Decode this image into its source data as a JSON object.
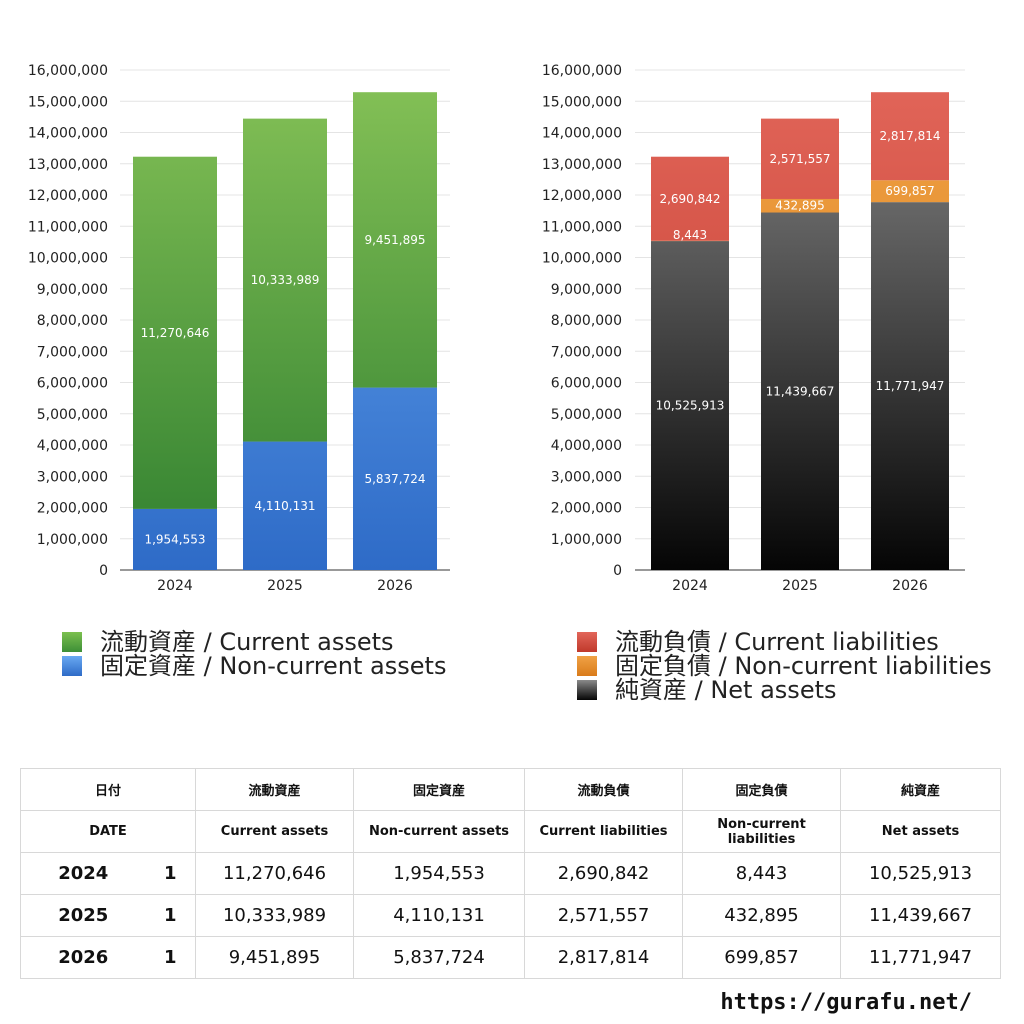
{
  "chart_data": [
    {
      "type": "bar",
      "stacked": true,
      "categories": [
        "2024",
        "2025",
        "2026"
      ],
      "ylim": [
        0,
        16000000
      ],
      "ytick_labels": [
        "0",
        "1,000,000",
        "2,000,000",
        "3,000,000",
        "4,000,000",
        "5,000,000",
        "6,000,000",
        "7,000,000",
        "8,000,000",
        "9,000,000",
        "10,000,000",
        "11,000,000",
        "12,000,000",
        "13,000,000",
        "14,000,000",
        "15,000,000",
        "16,000,000"
      ],
      "grid": true,
      "series": [
        {
          "name": "固定資産 / Non-current assets",
          "values": [
            1954553,
            4110131,
            5837724
          ],
          "labels": [
            "1,954,553",
            "4,110,131",
            "5,837,724"
          ],
          "color_top": "#69a9f2",
          "color_bottom": "#2e6bc7"
        },
        {
          "name": "流動資産 / Current assets",
          "values": [
            11270646,
            10333989,
            9451895
          ],
          "labels": [
            "11,270,646",
            "10,333,989",
            "9,451,895"
          ],
          "color_top": "#86c257",
          "color_bottom": "#2f7f2f"
        }
      ]
    },
    {
      "type": "bar",
      "stacked": true,
      "categories": [
        "2024",
        "2025",
        "2026"
      ],
      "ylim": [
        0,
        16000000
      ],
      "ytick_labels": [
        "0",
        "1,000,000",
        "2,000,000",
        "3,000,000",
        "4,000,000",
        "5,000,000",
        "6,000,000",
        "7,000,000",
        "8,000,000",
        "9,000,000",
        "10,000,000",
        "11,000,000",
        "12,000,000",
        "13,000,000",
        "14,000,000",
        "15,000,000",
        "16,000,000"
      ],
      "grid": true,
      "series": [
        {
          "name": "純資産 / Net assets",
          "values": [
            10525913,
            11439667,
            11771947
          ],
          "labels": [
            "10,525,913",
            "11,439,667",
            "11,771,947"
          ],
          "color_top": "#8a8a8a",
          "color_bottom": "#050505"
        },
        {
          "name": "固定負債 / Non-current liabilities",
          "values": [
            8443,
            432895,
            699857
          ],
          "labels": [
            "8,443",
            "432,895",
            "699,857"
          ],
          "color_top": "#f0a245",
          "color_bottom": "#d97b1b"
        },
        {
          "name": "流動負債 / Current liabilities",
          "values": [
            2690842,
            2571557,
            2817814
          ],
          "labels": [
            "2,690,842",
            "2,571,557",
            "2,817,814"
          ],
          "color_top": "#e2665a",
          "color_bottom": "#c0392b"
        }
      ]
    }
  ],
  "legend_left": [
    {
      "label": "流動資産 / Current assets",
      "color": "#5fae48"
    },
    {
      "label": "固定資産 / Non-current assets",
      "color": "#4d8fe0"
    }
  ],
  "legend_right": [
    {
      "label": "流動負債 / Current liabilities",
      "color": "#d24a3c"
    },
    {
      "label": "固定負債 / Non-current liabilities",
      "color": "#e98a2e"
    },
    {
      "label": "純資産 / Net assets",
      "color": "#222222"
    }
  ],
  "table": {
    "headers_jp": [
      "日付",
      "流動資産",
      "固定資産",
      "流動負債",
      "固定負債",
      "純資産"
    ],
    "headers_en": [
      "DATE",
      "Current assets",
      "Non-current assets",
      "Current liabilities",
      "Non-current liabilities",
      "Net assets"
    ],
    "rows": [
      {
        "year": "2024",
        "n": "1",
        "cells": [
          "11,270,646",
          "1,954,553",
          "2,690,842",
          "8,443",
          "10,525,913"
        ]
      },
      {
        "year": "2025",
        "n": "1",
        "cells": [
          "10,333,989",
          "4,110,131",
          "2,571,557",
          "432,895",
          "11,439,667"
        ]
      },
      {
        "year": "2026",
        "n": "1",
        "cells": [
          "9,451,895",
          "5,837,724",
          "2,817,814",
          "699,857",
          "11,771,947"
        ]
      }
    ]
  },
  "footer": {
    "url": "https://gurafu.net/"
  }
}
